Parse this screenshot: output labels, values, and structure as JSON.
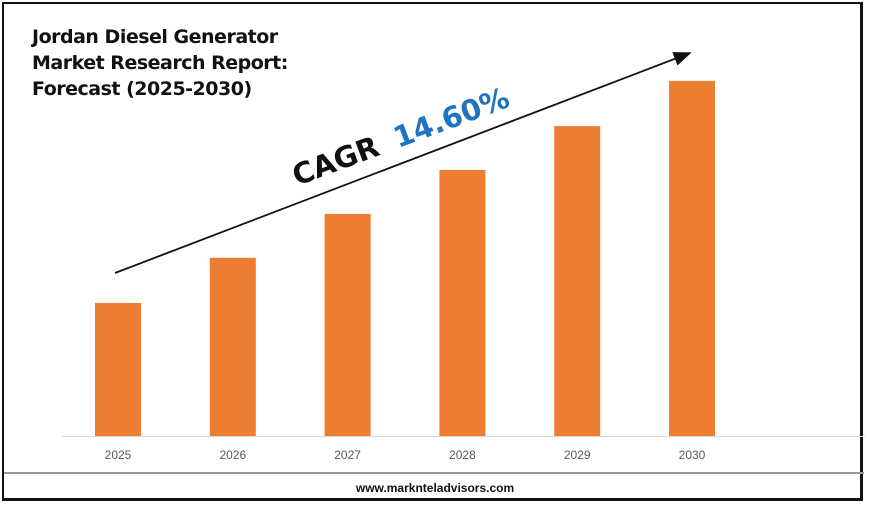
{
  "title_lines": [
    "Jordan Diesel Generator",
    "Market Research Report:",
    "Forecast (2025-2030)"
  ],
  "cagr": {
    "label": "CAGR",
    "value": "14.60%",
    "label_color": "#111111",
    "value_color": "#1F73C0"
  },
  "footer": "www.marknteladvisors.com",
  "chart_data": {
    "type": "bar",
    "title": "Jordan Diesel Generator Market Research Report: Forecast (2025-2030)",
    "categories": [
      "2025",
      "2026",
      "2027",
      "2028",
      "2029",
      "2030"
    ],
    "values": [
      1.0,
      1.34,
      1.67,
      2.0,
      2.33,
      2.67
    ],
    "value_unit": "relative (no y-axis printed)",
    "bar_color": "#ED7D31",
    "xlabel": "",
    "ylabel": "",
    "grid": false,
    "annotation": "CAGR 14.60%"
  }
}
